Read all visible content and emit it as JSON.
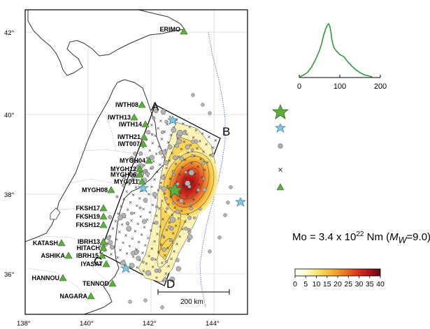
{
  "map": {
    "lat_labels": [
      "42°",
      "40°",
      "38°",
      "36°"
    ],
    "lon_labels": [
      "138°",
      "140°",
      "142°",
      "144°"
    ],
    "scale_bar": "200 km",
    "fault_corners": [
      "A",
      "B",
      "C",
      "D"
    ],
    "colors": {
      "land": "#ffffff",
      "slip_low": "#fffbd0",
      "slip_mid": "#f7c640",
      "slip_high": "#c9201b",
      "station_triangle": "#5fae3f",
      "epicenter_star": "#5fae3f",
      "cyan_star": "#7ec8e0",
      "aftershock": "#b4b4b4"
    },
    "stations": [
      {
        "name": "ERIMO"
      },
      {
        "name": "IWTH08"
      },
      {
        "name": "IWTH13"
      },
      {
        "name": "IWTH14"
      },
      {
        "name": "IWTH21"
      },
      {
        "name": "IWT007"
      },
      {
        "name": "MYGH04"
      },
      {
        "name": "MYGH12"
      },
      {
        "name": "MYGH06"
      },
      {
        "name": "MYG011"
      },
      {
        "name": "MYGH08"
      },
      {
        "name": "FKSH17"
      },
      {
        "name": "FKSH19"
      },
      {
        "name": "FKSH12"
      },
      {
        "name": "KATASH"
      },
      {
        "name": "IBRH13"
      },
      {
        "name": "HITACH"
      },
      {
        "name": "ASHIKA"
      },
      {
        "name": "IBRH15"
      },
      {
        "name": "IYASAT"
      },
      {
        "name": "HANNOU"
      },
      {
        "name": "TENNOD"
      },
      {
        "name": "NAGARA"
      }
    ],
    "legend_symbols": [
      "epicenter-star",
      "cyan-star",
      "gray-circle",
      "cross",
      "green-triangle"
    ]
  },
  "stf": {
    "type": "line",
    "x_ticks": [
      "0",
      "100",
      "200"
    ],
    "xlim": [
      0,
      200
    ],
    "ylim": [
      0,
      1
    ],
    "line_color": "#2e9a3e",
    "x": [
      0,
      10,
      20,
      30,
      40,
      50,
      55,
      60,
      65,
      70,
      72,
      75,
      78,
      80,
      85,
      90,
      100,
      110,
      120,
      130,
      140,
      150,
      160,
      170,
      180
    ],
    "y": [
      0,
      0.03,
      0.08,
      0.18,
      0.32,
      0.5,
      0.62,
      0.78,
      0.9,
      0.98,
      1.0,
      0.96,
      0.86,
      0.72,
      0.56,
      0.5,
      0.42,
      0.38,
      0.28,
      0.2,
      0.13,
      0.08,
      0.04,
      0.02,
      0
    ]
  },
  "moment": {
    "prefix": "Mo = 3.4 x 10",
    "exponent": "22",
    "unit": " Nm (",
    "mw_label": "M",
    "mw_sub": "W",
    "mw_value": "=9.0)"
  },
  "colorbar": {
    "ticks": [
      "0",
      "5",
      "10",
      "15",
      "20",
      "25",
      "30",
      "35",
      "40"
    ],
    "stops": [
      "#ffffff",
      "#fffbd0",
      "#fbe57a",
      "#f6c33e",
      "#f09a2a",
      "#e46520",
      "#d23019",
      "#a8141a",
      "#5a0c12"
    ]
  }
}
